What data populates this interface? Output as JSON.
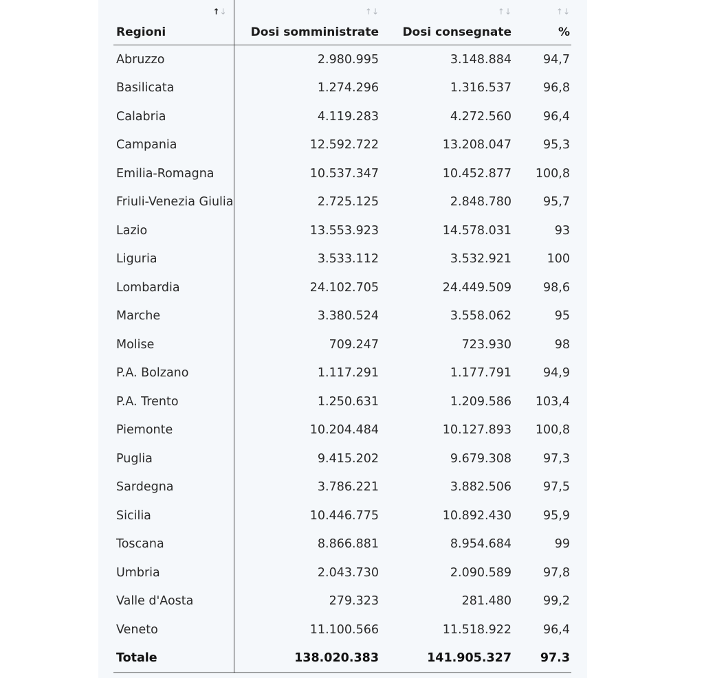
{
  "table": {
    "headers": {
      "regioni": "Regioni",
      "somministrate": "Dosi somministrate",
      "consegnate": "Dosi consegnate",
      "percent": "%"
    },
    "sort_glyph_up": "↑",
    "sort_glyph_down": "↓",
    "rows": [
      {
        "regione": "Abruzzo",
        "somministrate": "2.980.995",
        "consegnate": "3.148.884",
        "percent": "94,7"
      },
      {
        "regione": "Basilicata",
        "somministrate": "1.274.296",
        "consegnate": "1.316.537",
        "percent": "96,8"
      },
      {
        "regione": "Calabria",
        "somministrate": "4.119.283",
        "consegnate": "4.272.560",
        "percent": "96,4"
      },
      {
        "regione": "Campania",
        "somministrate": "12.592.722",
        "consegnate": "13.208.047",
        "percent": "95,3"
      },
      {
        "regione": "Emilia-Romagna",
        "somministrate": "10.537.347",
        "consegnate": "10.452.877",
        "percent": "100,8"
      },
      {
        "regione": "Friuli-Venezia Giulia",
        "somministrate": "2.725.125",
        "consegnate": "2.848.780",
        "percent": "95,7"
      },
      {
        "regione": "Lazio",
        "somministrate": "13.553.923",
        "consegnate": "14.578.031",
        "percent": "93"
      },
      {
        "regione": "Liguria",
        "somministrate": "3.533.112",
        "consegnate": "3.532.921",
        "percent": "100"
      },
      {
        "regione": "Lombardia",
        "somministrate": "24.102.705",
        "consegnate": "24.449.509",
        "percent": "98,6"
      },
      {
        "regione": "Marche",
        "somministrate": "3.380.524",
        "consegnate": "3.558.062",
        "percent": "95"
      },
      {
        "regione": "Molise",
        "somministrate": "709.247",
        "consegnate": "723.930",
        "percent": "98"
      },
      {
        "regione": "P.A. Bolzano",
        "somministrate": "1.117.291",
        "consegnate": "1.177.791",
        "percent": "94,9"
      },
      {
        "regione": "P.A. Trento",
        "somministrate": "1.250.631",
        "consegnate": "1.209.586",
        "percent": "103,4"
      },
      {
        "regione": "Piemonte",
        "somministrate": "10.204.484",
        "consegnate": "10.127.893",
        "percent": "100,8"
      },
      {
        "regione": "Puglia",
        "somministrate": "9.415.202",
        "consegnate": "9.679.308",
        "percent": "97,3"
      },
      {
        "regione": "Sardegna",
        "somministrate": "3.786.221",
        "consegnate": "3.882.506",
        "percent": "97,5"
      },
      {
        "regione": "Sicilia",
        "somministrate": "10.446.775",
        "consegnate": "10.892.430",
        "percent": "95,9"
      },
      {
        "regione": "Toscana",
        "somministrate": "8.866.881",
        "consegnate": "8.954.684",
        "percent": "99"
      },
      {
        "regione": "Umbria",
        "somministrate": "2.043.730",
        "consegnate": "2.090.589",
        "percent": "97,8"
      },
      {
        "regione": "Valle d'Aosta",
        "somministrate": "279.323",
        "consegnate": "281.480",
        "percent": "99,2"
      },
      {
        "regione": "Veneto",
        "somministrate": "11.100.566",
        "consegnate": "11.518.922",
        "percent": "96,4"
      }
    ],
    "total": {
      "regione": "Totale",
      "somministrate": "138.020.383",
      "consegnate": "141.905.327",
      "percent": "97.3"
    }
  }
}
